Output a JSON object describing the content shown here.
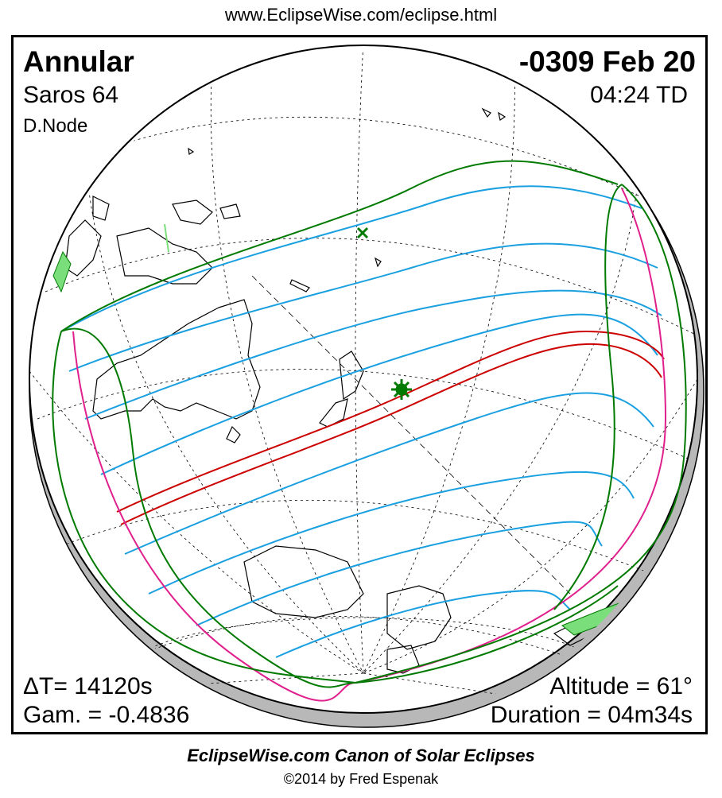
{
  "header": {
    "url": "www.EclipseWise.com/eclipse.html"
  },
  "eclipse": {
    "type": "Annular",
    "saros": "Saros  64",
    "node": "D.Node",
    "date": "-0309 Feb 20",
    "time": "04:24 TD",
    "delta_t": "ΔT=  14120s",
    "gamma": "Gam. = -0.4836",
    "altitude": "Altitude = 61°",
    "duration": "Duration = 04m34s"
  },
  "map": {
    "colors": {
      "globe_shadow": "#b8b8b8",
      "graticule": "#000000",
      "coastline": "#000000",
      "penumbral_limits": "#007a00",
      "penumbral_magnitude_lines": "#1aa0e0",
      "central_path": "#cc0000",
      "sunrise_sunset_curves": "#e0208c",
      "greatest_eclipse_marker": "#007a00",
      "subsolar_marker": "#007a00"
    }
  },
  "footer": {
    "title": "EclipseWise.com Canon of Solar Eclipses",
    "copyright": "©2014 by Fred Espenak"
  }
}
